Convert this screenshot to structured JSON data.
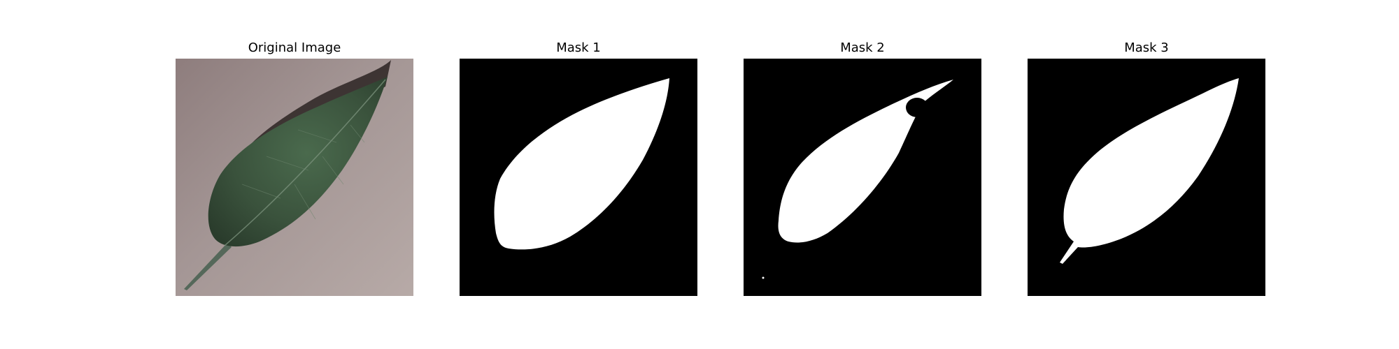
{
  "figure": {
    "panels": [
      {
        "title": "Original Image"
      },
      {
        "title": "Mask 1"
      },
      {
        "title": "Mask 2"
      },
      {
        "title": "Mask 3"
      }
    ]
  },
  "colors": {
    "mask_background": "#000000",
    "mask_foreground": "#ffffff",
    "leaf": "#3e5640",
    "surface": "#a59895"
  }
}
